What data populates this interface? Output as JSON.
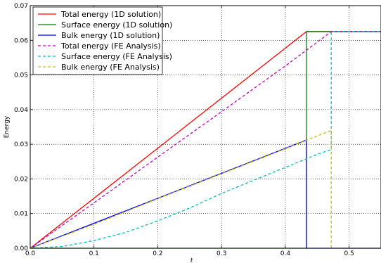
{
  "chart_data": {
    "type": "line",
    "xlabel": "t",
    "ylabel": "Energy",
    "xlim": [
      0.0,
      0.55
    ],
    "ylim": [
      0.0,
      0.07
    ],
    "xticks": [
      "0.0",
      "0.1",
      "0.2",
      "0.3",
      "0.4",
      "0.5"
    ],
    "yticks": [
      "0.00",
      "0.01",
      "0.02",
      "0.03",
      "0.04",
      "0.05",
      "0.06",
      "0.07"
    ],
    "grid": true,
    "legend_position": "top-left",
    "series": [
      {
        "name": "Total energy (1D solution)",
        "color": "#ff0000",
        "style": "solid",
        "x": [
          0.0,
          0.433,
          0.55
        ],
        "y": [
          0.0,
          0.0625,
          0.0625
        ]
      },
      {
        "name": "Surface energy (1D solution)",
        "color": "#008000",
        "style": "solid",
        "x": [
          0.0,
          0.433,
          0.433,
          0.55
        ],
        "y": [
          0.0,
          0.0,
          0.0625,
          0.0625
        ]
      },
      {
        "name": "Bulk energy (1D solution)",
        "color": "#0000ff",
        "style": "solid",
        "x": [
          0.0,
          0.433,
          0.433,
          0.55
        ],
        "y": [
          0.0,
          0.0312,
          0.0,
          0.0
        ]
      },
      {
        "name": "Total energy (FE Analysis)",
        "color": "#bf00bf",
        "style": "dashed",
        "x": [
          0.0,
          0.1,
          0.2,
          0.3,
          0.4,
          0.472,
          0.55
        ],
        "y": [
          0.0,
          0.0131,
          0.0263,
          0.0394,
          0.0526,
          0.0625,
          0.0625
        ]
      },
      {
        "name": "Surface energy (FE Analysis)",
        "color": "#00bfbf",
        "style": "dashed",
        "x": [
          0.0,
          0.05,
          0.1,
          0.15,
          0.2,
          0.25,
          0.3,
          0.35,
          0.4,
          0.45,
          0.472,
          0.472,
          0.55
        ],
        "y": [
          0.0,
          0.0005,
          0.0022,
          0.0046,
          0.0079,
          0.0116,
          0.0158,
          0.0196,
          0.0233,
          0.0271,
          0.0285,
          0.0625,
          0.0625
        ]
      },
      {
        "name": "Bulk energy (FE Analysis)",
        "color": "#bfbf00",
        "style": "dashed",
        "x": [
          0.0,
          0.1,
          0.2,
          0.3,
          0.4,
          0.472,
          0.472,
          0.55
        ],
        "y": [
          0.0,
          0.0069,
          0.0143,
          0.0215,
          0.0287,
          0.034,
          0.0,
          0.0
        ]
      }
    ]
  }
}
